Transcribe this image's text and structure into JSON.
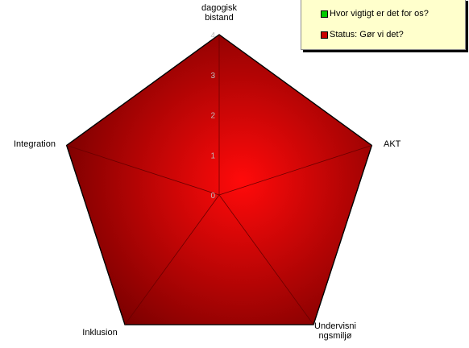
{
  "chart_data": {
    "type": "radar",
    "title": "",
    "categories": [
      "Pædagogisk\ndagogisk\nbistand",
      "AKT",
      "Undervisni\nngsmiljø",
      "Inklusion",
      "Integration"
    ],
    "axis_labels": [
      "dagogisk\nbistand",
      "AKT",
      "Undervisni\nngsmiljø",
      "Inklusion",
      "Integration"
    ],
    "ticks": [
      "0",
      "1",
      "2",
      "3",
      "4"
    ],
    "rlim": [
      0,
      4
    ],
    "series": [
      {
        "name": "Hvor vigtigt er det for os?",
        "values": [
          4,
          4,
          4,
          4,
          4
        ],
        "color": "#00cc00"
      },
      {
        "name": "Status: Gør vi det?",
        "values": [
          4,
          4,
          4,
          4,
          4
        ],
        "color": "#cc0000"
      }
    ],
    "legend_position": "top-right",
    "fill_colors": {
      "center": "#ff0a0a",
      "edge": "#7a0000"
    }
  }
}
